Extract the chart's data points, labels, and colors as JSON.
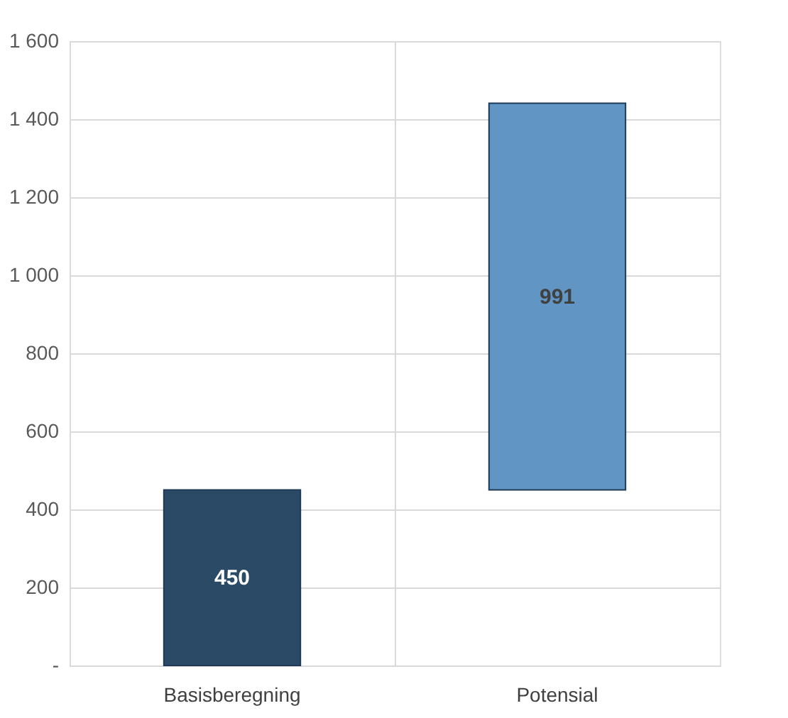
{
  "chart_data": {
    "type": "bar",
    "categories": [
      "Basisberegning",
      "Potensial"
    ],
    "values": [
      450,
      991
    ],
    "base": [
      0,
      450
    ],
    "colors": [
      "#2a4a66",
      "#6196c4"
    ],
    "data_labels": true,
    "ylim": [
      0,
      1600
    ],
    "yticks": [
      {
        "value": 0,
        "label": "-"
      },
      200,
      400,
      600,
      800,
      {
        "value": 1000,
        "label": "1 000"
      },
      {
        "value": 1200,
        "label": "1 200"
      },
      {
        "value": 1400,
        "label": "1 400"
      },
      {
        "value": 1600,
        "label": "1 600"
      }
    ],
    "grid": true
  }
}
